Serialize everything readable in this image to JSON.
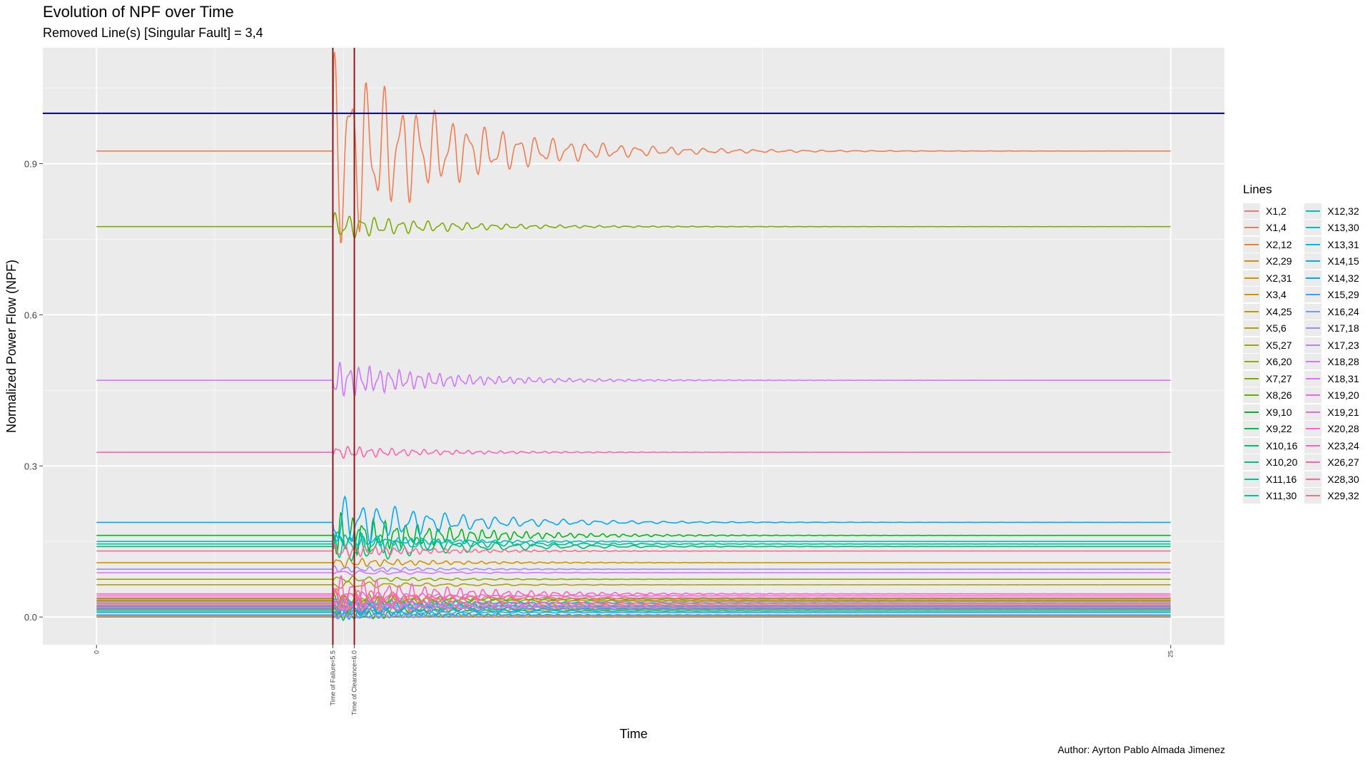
{
  "title": "Evolution of NPF over Time",
  "subtitle": "Removed Line(s) [Singular Fault] = 3,4",
  "caption": "Author: Ayrton Pablo Almada Jimenez",
  "legend_title": "Lines",
  "chart_data": {
    "type": "line",
    "title": "Evolution of NPF over Time",
    "subtitle": "Removed Line(s) [Singular Fault] = 3,4",
    "xlabel": "Time",
    "ylabel": "Normalized Power Flow (NPF)",
    "xlim": [
      -1.25,
      26.25
    ],
    "ylim": [
      -0.055,
      1.13
    ],
    "x_ticks": [
      {
        "value": 0,
        "label": "0"
      },
      {
        "value": 5.5,
        "label": "Time of Failure=5.5"
      },
      {
        "value": 6.0,
        "label": "Time of Clearance=6.0"
      },
      {
        "value": 25,
        "label": "25"
      }
    ],
    "y_ticks": [
      {
        "value": 0.0,
        "label": "0.0"
      },
      {
        "value": 0.3,
        "label": "0.3"
      },
      {
        "value": 0.6,
        "label": "0.6"
      },
      {
        "value": 0.9,
        "label": "0.9"
      }
    ],
    "reference_lines": [
      {
        "orientation": "vertical",
        "value": 5.5,
        "color": "#8b1a1a"
      },
      {
        "orientation": "vertical",
        "value": 6.0,
        "color": "#8b1a1a"
      },
      {
        "orientation": "horizontal",
        "value": 1.0,
        "color": "#00008b"
      }
    ],
    "grid": true,
    "legend_position": "right",
    "series": [
      {
        "name": "X1,2",
        "color": "#F8766D",
        "y0": 0.031,
        "osc": 0.02
      },
      {
        "name": "X1,4",
        "color": "#F27D52",
        "y0": 0.925,
        "osc": 0.15
      },
      {
        "name": "X2,12",
        "color": "#EA8331",
        "y0": 0.018,
        "osc": 0.015
      },
      {
        "name": "X2,29",
        "color": "#E18A00",
        "y0": 0.024,
        "osc": 0.015
      },
      {
        "name": "X2,31",
        "color": "#D89000",
        "y0": 0.108,
        "osc": 0.008
      },
      {
        "name": "X3,4",
        "color": "#CD9600",
        "y0": 0.0,
        "osc": 0.0
      },
      {
        "name": "X4,25",
        "color": "#C09B00",
        "y0": 0.015,
        "osc": 0.01
      },
      {
        "name": "X5,6",
        "color": "#B3A000",
        "y0": 0.064,
        "osc": 0.006
      },
      {
        "name": "X5,27",
        "color": "#A3A500",
        "y0": 0.033,
        "osc": 0.01
      },
      {
        "name": "X6,20",
        "color": "#93AA00",
        "y0": 0.075,
        "osc": 0.005
      },
      {
        "name": "X7,27",
        "color": "#7CAE00",
        "y0": 0.775,
        "osc": 0.02
      },
      {
        "name": "X8,26",
        "color": "#5BB300",
        "y0": 0.036,
        "osc": 0.01
      },
      {
        "name": "X9,10",
        "color": "#00B81F",
        "y0": 0.162,
        "osc": 0.035
      },
      {
        "name": "X9,22",
        "color": "#00BB4E",
        "y0": 0.004,
        "osc": 0.008
      },
      {
        "name": "X10,16",
        "color": "#00BE6C",
        "y0": 0.14,
        "osc": 0.03
      },
      {
        "name": "X10,20",
        "color": "#00C086",
        "y0": 0.012,
        "osc": 0.008
      },
      {
        "name": "X11,16",
        "color": "#00C19C",
        "y0": 0.145,
        "osc": 0.02
      },
      {
        "name": "X11,30",
        "color": "#00C0AF",
        "y0": 0.021,
        "osc": 0.01
      },
      {
        "name": "X12,32",
        "color": "#00BFC4",
        "y0": 0.15,
        "osc": 0.01
      },
      {
        "name": "X13,30",
        "color": "#00BCD8",
        "y0": 0.028,
        "osc": 0.008
      },
      {
        "name": "X13,31",
        "color": "#00B7E8",
        "y0": 0.003,
        "osc": 0.006
      },
      {
        "name": "X14,15",
        "color": "#00B0F6",
        "y0": 0.016,
        "osc": 0.01
      },
      {
        "name": "X14,32",
        "color": "#00A9FF",
        "y0": 0.188,
        "osc": 0.04
      },
      {
        "name": "X15,29",
        "color": "#35A2FF",
        "y0": 0.009,
        "osc": 0.006
      },
      {
        "name": "X16,24",
        "color": "#7997FF",
        "y0": 0.022,
        "osc": 0.008
      },
      {
        "name": "X17,18",
        "color": "#9F8CFF",
        "y0": 0.095,
        "osc": 0.005
      },
      {
        "name": "X17,23",
        "color": "#B983FF",
        "y0": 0.002,
        "osc": 0.004
      },
      {
        "name": "X18,28",
        "color": "#CF78FF",
        "y0": 0.47,
        "osc": 0.028
      },
      {
        "name": "X18,31",
        "color": "#DF70F8",
        "y0": 0.088,
        "osc": 0.004
      },
      {
        "name": "X19,20",
        "color": "#EB69F0",
        "y0": 0.019,
        "osc": 0.008
      },
      {
        "name": "X19,21",
        "color": "#F564E3",
        "y0": 0.042,
        "osc": 0.008
      },
      {
        "name": "X20,28",
        "color": "#FC61D5",
        "y0": 0.027,
        "osc": 0.012
      },
      {
        "name": "X23,24",
        "color": "#FF62BC",
        "y0": 0.046,
        "osc": 0.03
      },
      {
        "name": "X26,27",
        "color": "#FF65AE",
        "y0": 0.327,
        "osc": 0.01
      },
      {
        "name": "X28,30",
        "color": "#FF6A98",
        "y0": 0.131,
        "osc": 0.01
      },
      {
        "name": "X29,32",
        "color": "#FE6E8A",
        "y0": 0.038,
        "osc": 0.015
      }
    ]
  }
}
